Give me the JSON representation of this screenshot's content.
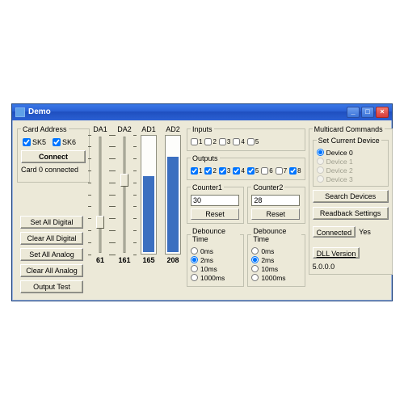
{
  "window": {
    "title": "Demo"
  },
  "card_address": {
    "legend": "Card Address",
    "sk5_label": "SK5",
    "sk5_checked": true,
    "sk6_label": "SK6",
    "sk6_checked": true,
    "connect_label": "Connect",
    "status": "Card 0 connected"
  },
  "left_buttons": {
    "set_digital": "Set All Digital",
    "clear_digital": "Clear All Digital",
    "set_analog": "Set All Analog",
    "clear_analog": "Clear All Analog",
    "output_test": "Output Test"
  },
  "channels": {
    "da1": {
      "label": "DA1",
      "value": 61,
      "max": 255,
      "type": "slider"
    },
    "da2": {
      "label": "DA2",
      "value": 161,
      "max": 255,
      "type": "slider"
    },
    "ad1": {
      "label": "AD1",
      "value": 165,
      "max": 255,
      "type": "bar",
      "fill_color": "#3b6fc0"
    },
    "ad2": {
      "label": "AD2",
      "value": 208,
      "max": 255,
      "type": "bar",
      "fill_color": "#3b6fc0"
    }
  },
  "inputs": {
    "legend": "Inputs",
    "labels": [
      "1",
      "2",
      "3",
      "4",
      "5"
    ],
    "checked": [
      false,
      false,
      false,
      false,
      false
    ]
  },
  "outputs": {
    "legend": "Outputs",
    "labels": [
      "1",
      "2",
      "3",
      "4",
      "5",
      "6",
      "7",
      "8"
    ],
    "checked": [
      true,
      true,
      true,
      true,
      true,
      false,
      false,
      true
    ]
  },
  "counter1": {
    "legend": "Counter1",
    "value": "30",
    "reset_label": "Reset"
  },
  "counter2": {
    "legend": "Counter2",
    "value": "28",
    "reset_label": "Reset"
  },
  "debounce": {
    "legend": "Debounce Time",
    "options": [
      "0ms",
      "2ms",
      "10ms",
      "1000ms"
    ],
    "selected1": "2ms",
    "selected2": "2ms"
  },
  "multi": {
    "legend": "Multicard Commands",
    "set_current": {
      "legend": "Set Current Device",
      "options": [
        "Device 0",
        "Device 1",
        "Device 2",
        "Device 3"
      ],
      "selected": 0,
      "enabled": [
        true,
        false,
        false,
        false
      ]
    },
    "search_label": "Search Devices",
    "readback_label": "Readback Settings",
    "connected_label": "Connected",
    "connected_value": "Yes",
    "dll_label": "DLL Version",
    "dll_value": "5.0.0.0"
  },
  "colors": {
    "bar_fill": "#3b6fc0",
    "panel_bg": "#ece9d8",
    "title_grad_a": "#3a78e8",
    "title_grad_b": "#1f4fbf"
  }
}
